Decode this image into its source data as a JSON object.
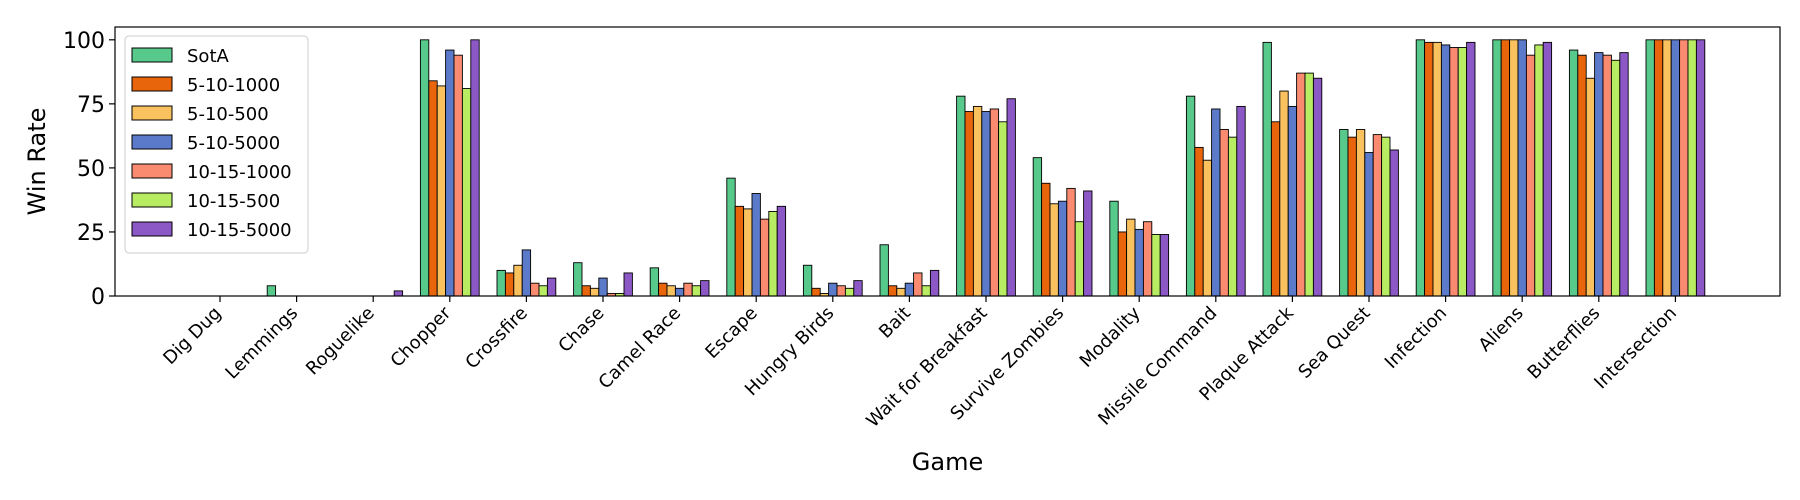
{
  "chart_data": {
    "type": "bar",
    "xlabel": "Game",
    "ylabel": "Win Rate",
    "ylim": [
      0,
      105
    ],
    "yticks": [
      0,
      25,
      50,
      75,
      100
    ],
    "grid": false,
    "legend_position": "top-left",
    "categories": [
      "Dig Dug",
      "Lemmings",
      "Roguelike",
      "Chopper",
      "Crossfire",
      "Chase",
      "Camel Race",
      "Escape",
      "Hungry Birds",
      "Bait",
      "Wait for Breakfast",
      "Survive Zombies",
      "Modality",
      "Missile Command",
      "Plaque Attack",
      "Sea Quest",
      "Infection",
      "Aliens",
      "Butterflies",
      "Intersection"
    ],
    "series": [
      {
        "name": "SotA",
        "color": "#57c98b",
        "values": [
          0,
          4,
          0,
          100,
          10,
          13,
          11,
          46,
          12,
          20,
          78,
          54,
          37,
          78,
          99,
          65,
          100,
          100,
          96,
          100
        ]
      },
      {
        "name": "5-10-1000",
        "color": "#e8650c",
        "values": [
          0,
          0,
          0,
          84,
          9,
          4,
          5,
          35,
          3,
          4,
          72,
          44,
          25,
          58,
          68,
          62,
          99,
          100,
          94,
          100
        ]
      },
      {
        "name": "5-10-500",
        "color": "#f9c25f",
        "values": [
          0,
          0,
          0,
          82,
          12,
          3,
          4,
          34,
          1,
          3,
          74,
          36,
          30,
          53,
          80,
          65,
          99,
          100,
          85,
          100
        ]
      },
      {
        "name": "5-10-5000",
        "color": "#5b7ac9",
        "values": [
          0,
          0,
          0,
          96,
          18,
          7,
          3,
          40,
          5,
          5,
          72,
          37,
          26,
          73,
          74,
          56,
          98,
          100,
          95,
          100
        ]
      },
      {
        "name": "10-15-1000",
        "color": "#fa8a70",
        "values": [
          0,
          0,
          0,
          94,
          5,
          1,
          5,
          30,
          4,
          9,
          73,
          42,
          29,
          65,
          87,
          63,
          97,
          94,
          94,
          100
        ]
      },
      {
        "name": "10-15-500",
        "color": "#b8ec62",
        "values": [
          0,
          0,
          0,
          81,
          4,
          1,
          4,
          33,
          3,
          4,
          68,
          29,
          24,
          62,
          87,
          62,
          97,
          98,
          92,
          100
        ]
      },
      {
        "name": "10-15-5000",
        "color": "#8b58c6",
        "values": [
          0,
          0,
          2,
          100,
          7,
          9,
          6,
          35,
          6,
          10,
          77,
          41,
          24,
          74,
          85,
          57,
          99,
          99,
          95,
          100
        ]
      }
    ]
  }
}
